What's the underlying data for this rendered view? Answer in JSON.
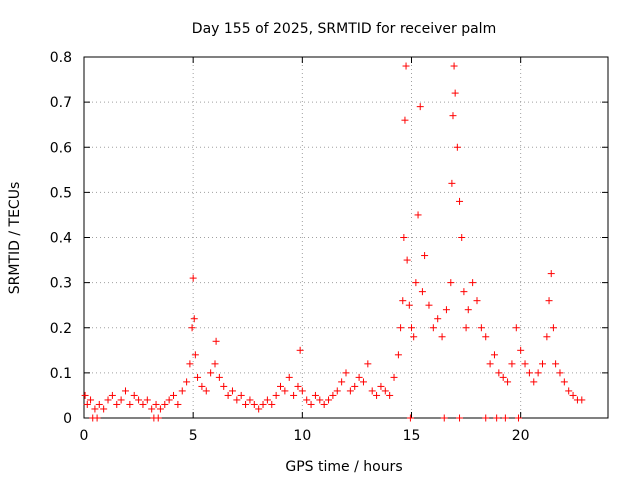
{
  "chart_data": {
    "type": "scatter",
    "title": "Day 155 of 2025, SRMTID for receiver palm",
    "xlabel": "GPS time / hours",
    "ylabel": "SRMTID / TECUs",
    "xlim": [
      0,
      24
    ],
    "ylim": [
      0,
      0.8
    ],
    "xticks": [
      0,
      5,
      10,
      15,
      20
    ],
    "yticks": [
      0,
      0.1,
      0.2,
      0.3,
      0.4,
      0.5,
      0.6,
      0.7,
      0.8
    ],
    "xtick_labels": [
      "0",
      "5",
      "10",
      "15",
      "20"
    ],
    "ytick_labels": [
      "0",
      "0.1",
      "0.2",
      "0.3",
      "0.4",
      "0.5",
      "0.6",
      "0.7",
      "0.8"
    ],
    "grid": true,
    "marker": "plus",
    "color": "#ff0000",
    "series": [
      {
        "name": "SRMTID",
        "x": [
          0.05,
          0.15,
          0.3,
          0.5,
          0.7,
          0.9,
          1.1,
          1.3,
          1.5,
          1.7,
          1.9,
          2.1,
          2.3,
          2.5,
          2.7,
          2.9,
          3.1,
          3.3,
          3.5,
          3.7,
          3.9,
          4.1,
          4.3,
          4.5,
          4.7,
          4.85,
          4.95,
          5.0,
          5.05,
          5.1,
          5.2,
          5.4,
          5.6,
          5.8,
          6.0,
          6.05,
          6.2,
          6.4,
          6.6,
          6.8,
          7.0,
          7.2,
          7.4,
          7.6,
          7.8,
          8.0,
          8.2,
          8.4,
          8.6,
          8.8,
          9.0,
          9.2,
          9.4,
          9.6,
          9.8,
          9.9,
          10.0,
          10.2,
          10.4,
          10.6,
          10.8,
          11.0,
          11.2,
          11.4,
          11.6,
          11.8,
          12.0,
          12.2,
          12.4,
          12.6,
          12.8,
          13.0,
          13.2,
          13.4,
          13.6,
          13.8,
          14.0,
          14.2,
          14.4,
          14.5,
          14.6,
          14.65,
          14.7,
          14.75,
          14.8,
          14.9,
          15.0,
          15.1,
          15.2,
          15.3,
          15.4,
          15.5,
          15.6,
          15.8,
          16.0,
          16.2,
          16.4,
          16.6,
          16.8,
          16.85,
          16.9,
          16.95,
          17.0,
          17.1,
          17.2,
          17.3,
          17.4,
          17.5,
          17.6,
          17.8,
          18.0,
          18.2,
          18.4,
          18.6,
          18.8,
          19.0,
          19.2,
          19.4,
          19.6,
          19.8,
          20.0,
          20.2,
          20.4,
          20.6,
          20.8,
          21.0,
          21.2,
          21.3,
          21.4,
          21.5,
          21.6,
          21.8,
          22.0,
          22.2,
          22.4,
          22.6,
          22.8,
          0.4,
          0.6,
          3.2,
          3.4,
          14.95,
          16.5,
          17.2,
          18.4,
          18.9,
          19.3,
          19.9
        ],
        "y": [
          0.05,
          0.03,
          0.04,
          0.02,
          0.03,
          0.02,
          0.04,
          0.05,
          0.03,
          0.04,
          0.06,
          0.03,
          0.05,
          0.04,
          0.03,
          0.04,
          0.02,
          0.03,
          0.02,
          0.03,
          0.04,
          0.05,
          0.03,
          0.06,
          0.08,
          0.12,
          0.2,
          0.31,
          0.22,
          0.14,
          0.09,
          0.07,
          0.06,
          0.1,
          0.12,
          0.17,
          0.09,
          0.07,
          0.05,
          0.06,
          0.04,
          0.05,
          0.03,
          0.04,
          0.03,
          0.02,
          0.03,
          0.04,
          0.03,
          0.05,
          0.07,
          0.06,
          0.09,
          0.05,
          0.07,
          0.15,
          0.06,
          0.04,
          0.03,
          0.05,
          0.04,
          0.03,
          0.04,
          0.05,
          0.06,
          0.08,
          0.1,
          0.06,
          0.07,
          0.09,
          0.08,
          0.12,
          0.06,
          0.05,
          0.07,
          0.06,
          0.05,
          0.09,
          0.14,
          0.2,
          0.26,
          0.4,
          0.66,
          0.78,
          0.35,
          0.25,
          0.2,
          0.18,
          0.3,
          0.45,
          0.69,
          0.28,
          0.36,
          0.25,
          0.2,
          0.22,
          0.18,
          0.24,
          0.3,
          0.52,
          0.67,
          0.78,
          0.72,
          0.6,
          0.48,
          0.4,
          0.28,
          0.2,
          0.24,
          0.3,
          0.26,
          0.2,
          0.18,
          0.12,
          0.14,
          0.1,
          0.09,
          0.08,
          0.12,
          0.2,
          0.15,
          0.12,
          0.1,
          0.08,
          0.1,
          0.12,
          0.18,
          0.26,
          0.32,
          0.2,
          0.12,
          0.1,
          0.08,
          0.06,
          0.05,
          0.04,
          0.04,
          0.0,
          0.0,
          0.0,
          0.0,
          0.0,
          0.0,
          0.0,
          0.0,
          0.0,
          0.0,
          0.0
        ]
      }
    ]
  }
}
